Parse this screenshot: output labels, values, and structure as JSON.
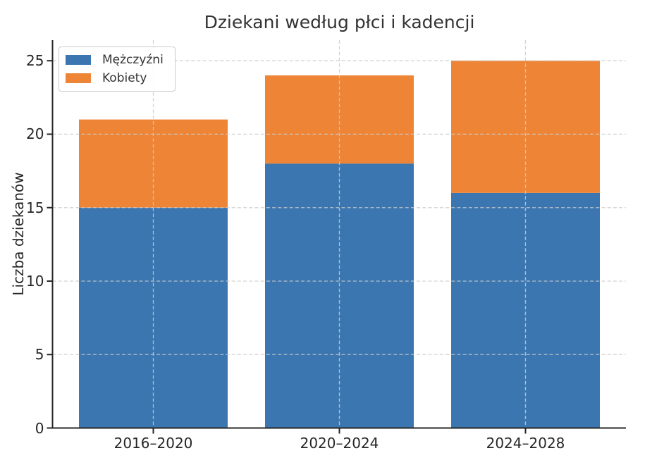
{
  "chart_data": {
    "type": "bar",
    "stacked": true,
    "title": "Dziekani według płci i kadencji",
    "ylabel": "Liczba dziekanów",
    "xlabel": "",
    "categories": [
      "2016–2020",
      "2020–2024",
      "2024–2028"
    ],
    "series": [
      {
        "name": "Mężczyźni",
        "color": "#3b76b0",
        "values": [
          15,
          18,
          16
        ]
      },
      {
        "name": "Kobiety",
        "color": "#ee8435",
        "values": [
          6,
          6,
          9
        ]
      }
    ],
    "stack_totals": [
      21,
      24,
      25
    ],
    "ylim": [
      0,
      26.4
    ],
    "yticks": [
      0,
      5,
      10,
      15,
      20,
      25
    ],
    "grid": {
      "visible": true,
      "style": "dashed",
      "axes": "both",
      "color": "#cccccc"
    },
    "legend": {
      "position": "upper-left"
    },
    "style": {
      "text_color": "#262626",
      "title_color": "#333333",
      "spine_color": "#262626",
      "background": "#ffffff"
    }
  }
}
